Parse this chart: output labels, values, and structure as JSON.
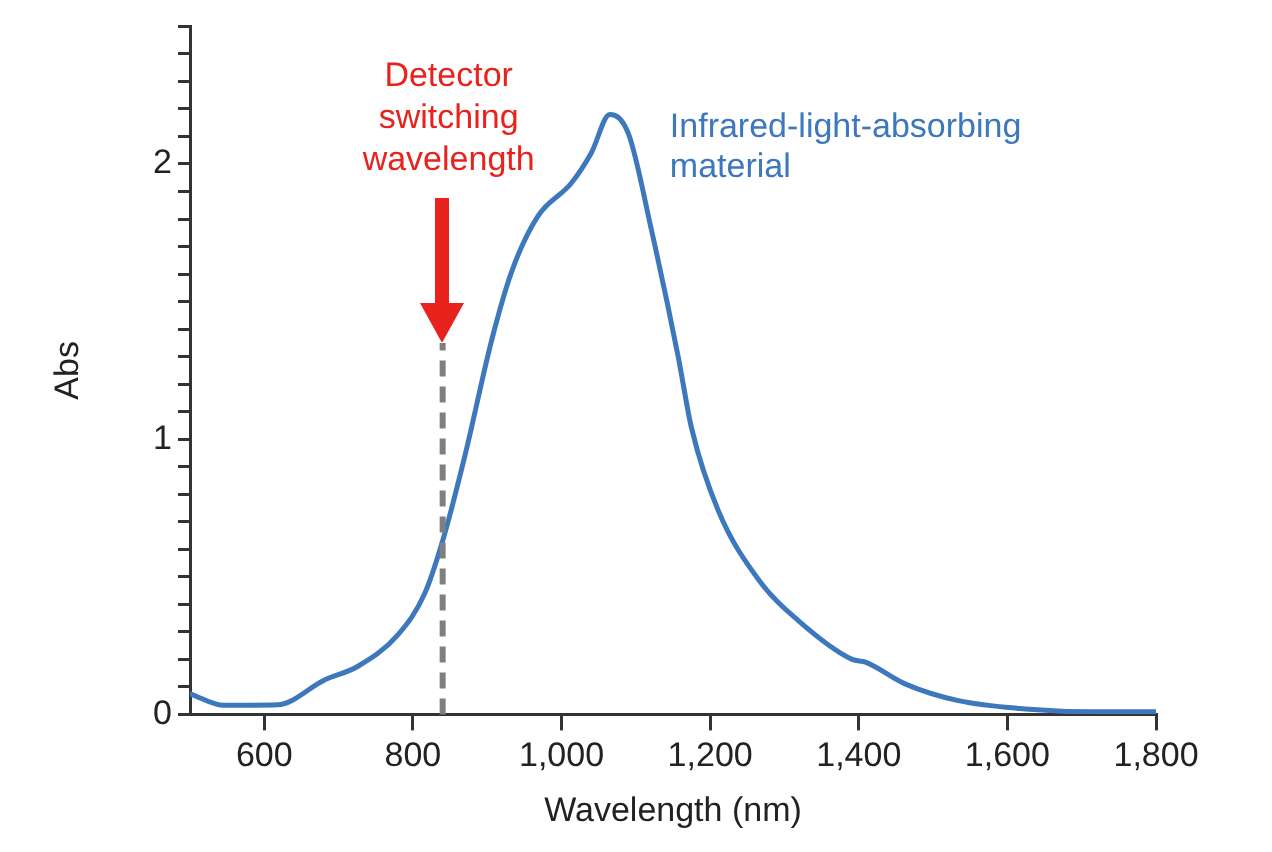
{
  "chart_data": {
    "type": "line",
    "xlabel": "Wavelength (nm)",
    "ylabel": "Abs",
    "xlim": [
      500,
      1800
    ],
    "ylim": [
      0,
      2.5
    ],
    "xticks": [
      600,
      800,
      {
        "value": 1000,
        "label": "1,000"
      },
      {
        "value": 1200,
        "label": "1,200"
      },
      {
        "value": 1400,
        "label": "1,400"
      },
      {
        "value": 1600,
        "label": "1,600"
      },
      {
        "value": 1800,
        "label": "1,800"
      }
    ],
    "yticks": [
      0,
      {
        "value": 0.1,
        "label": null
      },
      {
        "value": 0.2,
        "label": null
      },
      {
        "value": 0.3,
        "label": null
      },
      {
        "value": 0.4,
        "label": null
      },
      {
        "value": 0.5,
        "label": null
      },
      {
        "value": 0.6,
        "label": null
      },
      {
        "value": 0.7,
        "label": null
      },
      {
        "value": 0.8,
        "label": null
      },
      {
        "value": 0.9,
        "label": null
      },
      1,
      {
        "value": 1.1,
        "label": null
      },
      {
        "value": 1.2,
        "label": null
      },
      {
        "value": 1.3,
        "label": null
      },
      {
        "value": 1.4,
        "label": null
      },
      {
        "value": 1.5,
        "label": null
      },
      {
        "value": 1.6,
        "label": null
      },
      {
        "value": 1.7,
        "label": null
      },
      {
        "value": 1.8,
        "label": null
      },
      {
        "value": 1.9,
        "label": null
      },
      2,
      {
        "value": 2.1,
        "label": null
      },
      {
        "value": 2.2,
        "label": null
      },
      {
        "value": 2.3,
        "label": null
      },
      {
        "value": 2.4,
        "label": null
      },
      {
        "value": 2.5,
        "label": null
      }
    ],
    "grid": false,
    "legend": false,
    "marker": "none",
    "line_style": "solid",
    "series": [
      {
        "name": "Infrared-light-absorbing material",
        "color": "#3d78bd",
        "x": [
          500,
          546,
          618,
          681,
          726,
          780,
          816,
          841,
          870,
          906,
          933,
          968,
          1013,
          1040,
          1065,
          1090,
          1121,
          1157,
          1175,
          1211,
          1265,
          1319,
          1391,
          1409,
          1463,
          1534,
          1624,
          1714,
          1800
        ],
        "values": [
          0.075,
          0.033,
          0.035,
          0.125,
          0.175,
          0.29,
          0.44,
          0.64,
          0.94,
          1.36,
          1.61,
          1.81,
          1.93,
          2.04,
          2.18,
          2.11,
          1.76,
          1.3,
          1.04,
          0.74,
          0.49,
          0.34,
          0.2,
          0.19,
          0.11,
          0.05,
          0.02,
          0.01,
          0.01
        ]
      }
    ],
    "annotations": [
      "Detector switching wavelength"
    ],
    "ref_lines": [
      {
        "axis": "x",
        "value": 840,
        "color": "#7f7f7f",
        "line_style": "dashed"
      }
    ]
  }
}
